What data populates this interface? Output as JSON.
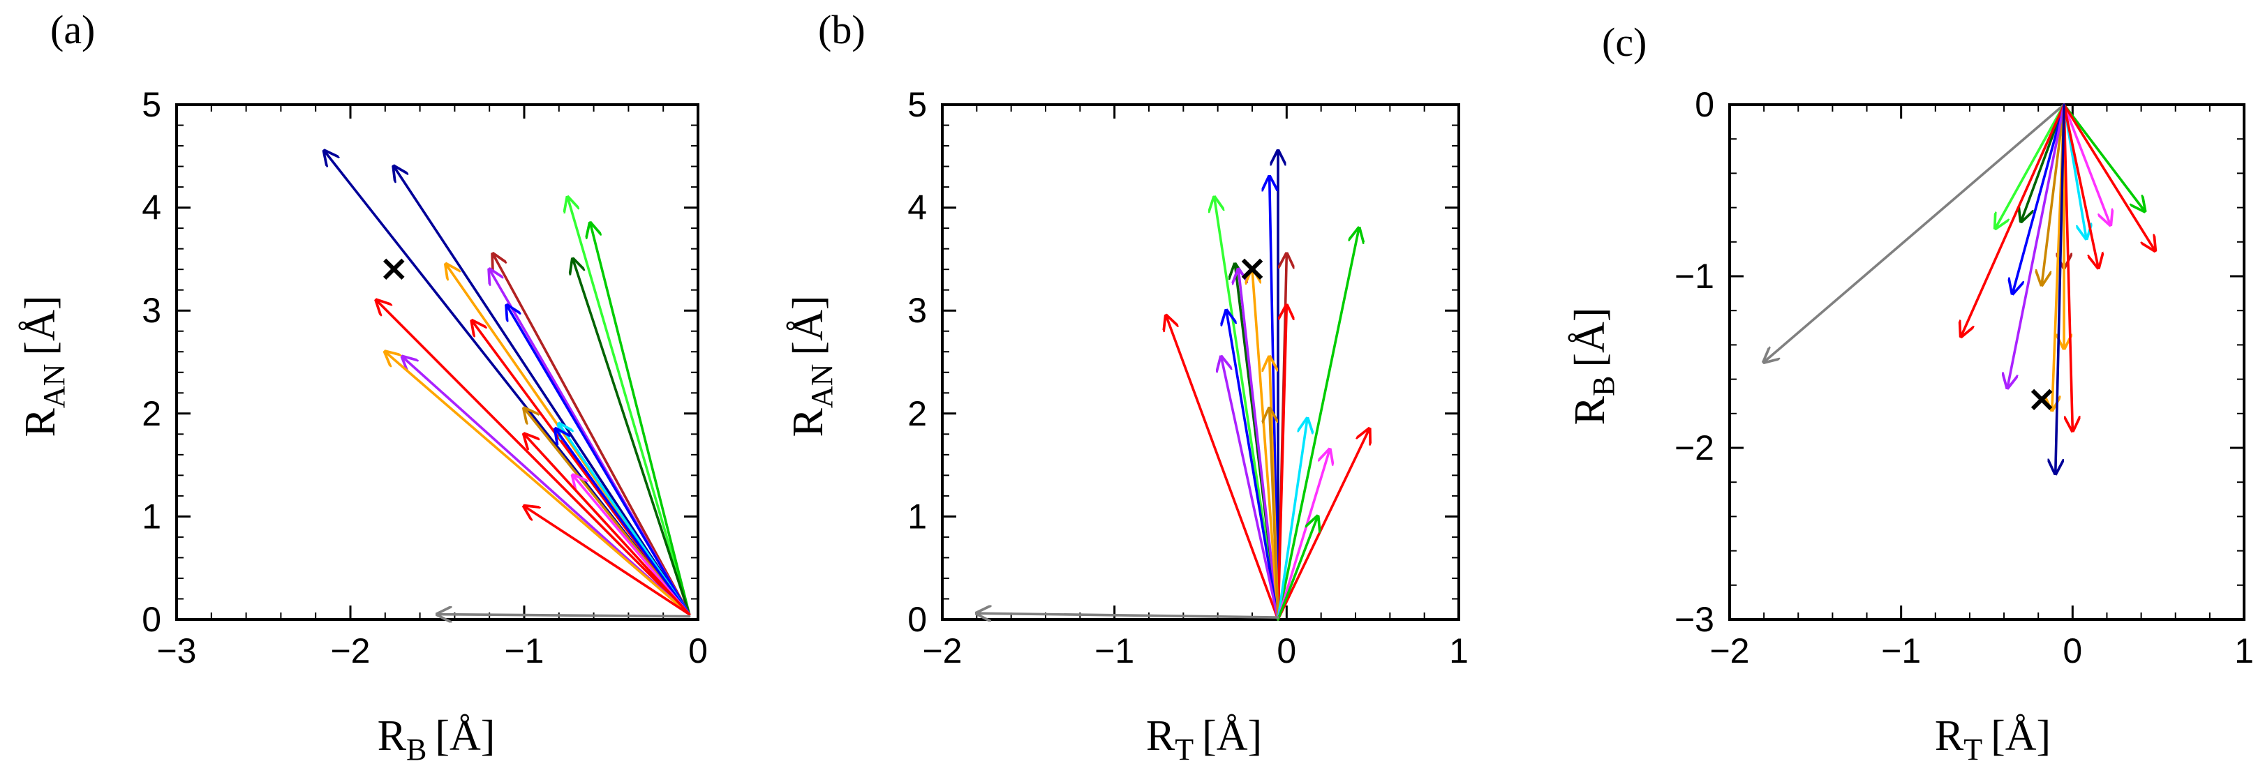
{
  "colors": {
    "red": "#ff0000",
    "green": "#00cc00",
    "lime": "#33ff33",
    "darkgreen": "#006400",
    "blue": "#0000ff",
    "navy": "#000099",
    "orange": "#ffa500",
    "darkorange": "#cc8800",
    "cyan": "#00e5ff",
    "magenta": "#ff33ff",
    "purple": "#aa22ff",
    "brown": "#b22222",
    "gray": "#808080",
    "black": "#000000"
  },
  "chart_data": [
    {
      "type": "vector",
      "panel_label": "(a)",
      "xlabel_main": "R",
      "xlabel_sub": "B",
      "xlabel_unit": "[Å]",
      "ylabel_main": "R",
      "ylabel_sub": "AN",
      "ylabel_unit": "[Å]",
      "xlim": [
        -3,
        0
      ],
      "ylim": [
        0,
        5
      ],
      "xticks": [
        -3,
        -2,
        -1,
        0
      ],
      "yticks": [
        0,
        1,
        2,
        3,
        4,
        5
      ],
      "xtick_labels": [
        "−3",
        "−2",
        "−1",
        "0"
      ],
      "ytick_labels": [
        "0",
        "1",
        "2",
        "3",
        "4",
        "5"
      ],
      "marker": {
        "x": -1.75,
        "y": 3.4,
        "symbol": "×"
      },
      "arrows": [
        {
          "color": "navy",
          "tail": [
            -0.05,
            0.05
          ],
          "tip": [
            -2.15,
            4.55
          ]
        },
        {
          "color": "navy",
          "tail": [
            -0.05,
            0.05
          ],
          "tip": [
            -1.75,
            4.4
          ]
        },
        {
          "color": "lime",
          "tail": [
            -0.05,
            0.05
          ],
          "tip": [
            -0.75,
            4.1
          ]
        },
        {
          "color": "green",
          "tail": [
            -0.05,
            0.05
          ],
          "tip": [
            -0.62,
            3.85
          ]
        },
        {
          "color": "darkgreen",
          "tail": [
            -0.05,
            0.05
          ],
          "tip": [
            -0.72,
            3.5
          ]
        },
        {
          "color": "brown",
          "tail": [
            -0.05,
            0.05
          ],
          "tip": [
            -1.18,
            3.55
          ]
        },
        {
          "color": "purple",
          "tail": [
            -0.05,
            0.05
          ],
          "tip": [
            -1.2,
            3.4
          ]
        },
        {
          "color": "orange",
          "tail": [
            -0.05,
            0.05
          ],
          "tip": [
            -1.45,
            3.45
          ]
        },
        {
          "color": "red",
          "tail": [
            -0.05,
            0.05
          ],
          "tip": [
            -1.85,
            3.1
          ]
        },
        {
          "color": "blue",
          "tail": [
            -0.05,
            0.05
          ],
          "tip": [
            -1.1,
            3.05
          ]
        },
        {
          "color": "red",
          "tail": [
            -0.05,
            0.05
          ],
          "tip": [
            -1.3,
            2.9
          ]
        },
        {
          "color": "purple",
          "tail": [
            -0.05,
            0.05
          ],
          "tip": [
            -1.7,
            2.55
          ]
        },
        {
          "color": "orange",
          "tail": [
            -0.05,
            0.05
          ],
          "tip": [
            -1.8,
            2.6
          ]
        },
        {
          "color": "darkorange",
          "tail": [
            -0.05,
            0.05
          ],
          "tip": [
            -1.0,
            2.05
          ]
        },
        {
          "color": "cyan",
          "tail": [
            -0.05,
            0.05
          ],
          "tip": [
            -0.8,
            1.9
          ]
        },
        {
          "color": "blue",
          "tail": [
            -0.05,
            0.05
          ],
          "tip": [
            -0.82,
            1.85
          ]
        },
        {
          "color": "magenta",
          "tail": [
            -0.05,
            0.05
          ],
          "tip": [
            -0.72,
            1.4
          ]
        },
        {
          "color": "red",
          "tail": [
            -0.05,
            0.05
          ],
          "tip": [
            -1.0,
            1.8
          ]
        },
        {
          "color": "red",
          "tail": [
            -0.05,
            0.05
          ],
          "tip": [
            -1.0,
            1.1
          ]
        },
        {
          "color": "gray",
          "tail": [
            -0.05,
            0.03
          ],
          "tip": [
            -1.5,
            0.05
          ]
        }
      ]
    },
    {
      "type": "vector",
      "panel_label": "(b)",
      "xlabel_main": "R",
      "xlabel_sub": "T",
      "xlabel_unit": "[Å]",
      "ylabel_main": "R",
      "ylabel_sub": "AN",
      "ylabel_unit": "[Å]",
      "xlim": [
        -2,
        1
      ],
      "ylim": [
        0,
        5
      ],
      "xticks": [
        -2,
        -1,
        0,
        1
      ],
      "yticks": [
        0,
        1,
        2,
        3,
        4,
        5
      ],
      "xtick_labels": [
        "−2",
        "−1",
        "0",
        "1"
      ],
      "ytick_labels": [
        "0",
        "1",
        "2",
        "3",
        "4",
        "5"
      ],
      "marker": {
        "x": -0.2,
        "y": 3.4,
        "symbol": "×"
      },
      "arrows": [
        {
          "color": "navy",
          "tail": [
            -0.05,
            0.0
          ],
          "tip": [
            -0.05,
            4.55
          ]
        },
        {
          "color": "blue",
          "tail": [
            -0.05,
            0.0
          ],
          "tip": [
            -0.1,
            4.3
          ]
        },
        {
          "color": "lime",
          "tail": [
            -0.05,
            0.0
          ],
          "tip": [
            -0.42,
            4.1
          ]
        },
        {
          "color": "green",
          "tail": [
            -0.05,
            0.0
          ],
          "tip": [
            0.42,
            3.8
          ]
        },
        {
          "color": "brown",
          "tail": [
            -0.05,
            0.0
          ],
          "tip": [
            0.0,
            3.55
          ]
        },
        {
          "color": "darkgreen",
          "tail": [
            -0.05,
            0.0
          ],
          "tip": [
            -0.3,
            3.45
          ]
        },
        {
          "color": "purple",
          "tail": [
            -0.05,
            0.0
          ],
          "tip": [
            -0.28,
            3.4
          ]
        },
        {
          "color": "orange",
          "tail": [
            -0.05,
            0.0
          ],
          "tip": [
            -0.2,
            3.4
          ]
        },
        {
          "color": "red",
          "tail": [
            -0.05,
            0.0
          ],
          "tip": [
            0.0,
            3.05
          ]
        },
        {
          "color": "blue",
          "tail": [
            -0.05,
            0.0
          ],
          "tip": [
            -0.35,
            3.0
          ]
        },
        {
          "color": "red",
          "tail": [
            -0.05,
            0.0
          ],
          "tip": [
            -0.7,
            2.95
          ]
        },
        {
          "color": "orange",
          "tail": [
            -0.05,
            0.0
          ],
          "tip": [
            -0.1,
            2.55
          ]
        },
        {
          "color": "purple",
          "tail": [
            -0.05,
            0.0
          ],
          "tip": [
            -0.38,
            2.55
          ]
        },
        {
          "color": "darkorange",
          "tail": [
            -0.05,
            0.0
          ],
          "tip": [
            -0.1,
            2.05
          ]
        },
        {
          "color": "cyan",
          "tail": [
            -0.05,
            0.0
          ],
          "tip": [
            0.12,
            1.95
          ]
        },
        {
          "color": "red",
          "tail": [
            -0.05,
            0.0
          ],
          "tip": [
            0.48,
            1.85
          ]
        },
        {
          "color": "magenta",
          "tail": [
            -0.05,
            0.0
          ],
          "tip": [
            0.25,
            1.65
          ]
        },
        {
          "color": "green",
          "tail": [
            -0.05,
            0.0
          ],
          "tip": [
            0.18,
            1.0
          ]
        },
        {
          "color": "gray",
          "tail": [
            -0.05,
            0.02
          ],
          "tip": [
            -1.8,
            0.06
          ]
        }
      ]
    },
    {
      "type": "vector",
      "panel_label": "(c)",
      "xlabel_main": "R",
      "xlabel_sub": "T",
      "xlabel_unit": "[Å]",
      "ylabel_main": "R",
      "ylabel_sub": "B",
      "ylabel_unit": "[Å]",
      "xlim": [
        -2,
        1
      ],
      "ylim": [
        -3,
        0
      ],
      "xticks": [
        -2,
        -1,
        0,
        1
      ],
      "yticks": [
        0,
        -1,
        -2,
        -3
      ],
      "xtick_labels": [
        "−2",
        "−1",
        "0",
        "1"
      ],
      "ytick_labels": [
        "0",
        "−1",
        "−2",
        "−3"
      ],
      "marker": {
        "x": -0.18,
        "y": -1.72,
        "symbol": "×"
      },
      "arrows": [
        {
          "color": "gray",
          "tail": [
            -0.05,
            0.0
          ],
          "tip": [
            -1.8,
            -1.5
          ]
        },
        {
          "color": "lime",
          "tail": [
            -0.05,
            0.0
          ],
          "tip": [
            -0.45,
            -0.72
          ]
        },
        {
          "color": "darkgreen",
          "tail": [
            -0.05,
            0.0
          ],
          "tip": [
            -0.3,
            -0.68
          ]
        },
        {
          "color": "green",
          "tail": [
            -0.05,
            0.0
          ],
          "tip": [
            0.42,
            -0.62
          ]
        },
        {
          "color": "magenta",
          "tail": [
            -0.05,
            0.0
          ],
          "tip": [
            0.22,
            -0.7
          ]
        },
        {
          "color": "cyan",
          "tail": [
            -0.05,
            0.0
          ],
          "tip": [
            0.08,
            -0.78
          ]
        },
        {
          "color": "red",
          "tail": [
            -0.05,
            0.0
          ],
          "tip": [
            0.48,
            -0.85
          ]
        },
        {
          "color": "red",
          "tail": [
            -0.05,
            0.0
          ],
          "tip": [
            0.15,
            -0.95
          ]
        },
        {
          "color": "brown",
          "tail": [
            -0.05,
            0.0
          ],
          "tip": [
            -0.05,
            -0.95
          ]
        },
        {
          "color": "blue",
          "tail": [
            -0.05,
            0.0
          ],
          "tip": [
            -0.35,
            -1.1
          ]
        },
        {
          "color": "darkorange",
          "tail": [
            -0.05,
            0.0
          ],
          "tip": [
            -0.18,
            -1.05
          ]
        },
        {
          "color": "red",
          "tail": [
            -0.05,
            0.0
          ],
          "tip": [
            -0.65,
            -1.35
          ]
        },
        {
          "color": "orange",
          "tail": [
            -0.05,
            0.0
          ],
          "tip": [
            -0.05,
            -1.42
          ]
        },
        {
          "color": "purple",
          "tail": [
            -0.05,
            0.0
          ],
          "tip": [
            -0.38,
            -1.65
          ]
        },
        {
          "color": "orange",
          "tail": [
            -0.05,
            0.0
          ],
          "tip": [
            -0.12,
            -1.78
          ]
        },
        {
          "color": "red",
          "tail": [
            -0.05,
            0.0
          ],
          "tip": [
            0.0,
            -1.9
          ]
        },
        {
          "color": "navy",
          "tail": [
            -0.05,
            0.0
          ],
          "tip": [
            -0.1,
            -2.15
          ]
        }
      ]
    }
  ]
}
